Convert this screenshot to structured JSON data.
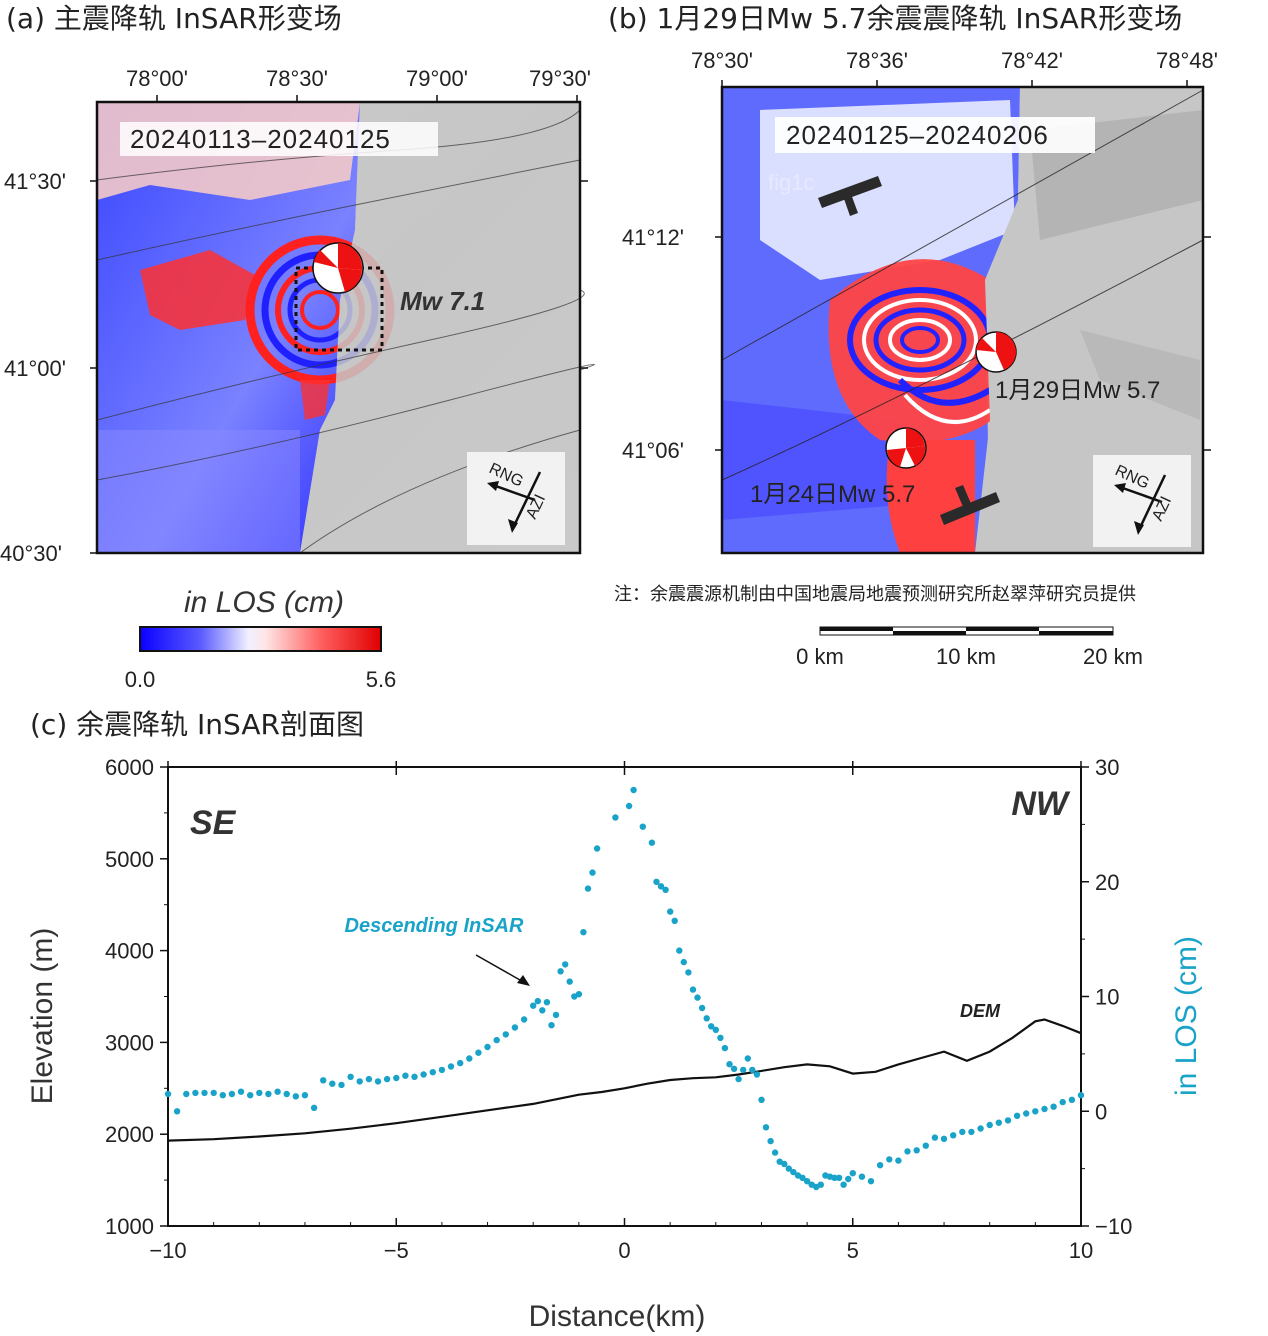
{
  "panels": {
    "a": {
      "title": "(a) 主震降轨 InSAR形变场",
      "date_range": "20240113–20240125",
      "event_label": "Mw 7.1",
      "lon_ticks": [
        "78°00'",
        "78°30'",
        "79°00'",
        "79°30'"
      ],
      "lat_ticks": [
        "41°30'",
        "41°00'",
        "40°30'"
      ],
      "rng_label": "RNG",
      "azi_label": "AZI"
    },
    "b": {
      "title": "(b) 1月29日Mw 5.7余震震降轨 InSAR形变场",
      "date_range": "20240125–20240206",
      "profile_label": "fig1c",
      "event1_label": "1月29日Mw 5.7",
      "event2_label": "1月24日Mw 5.7",
      "lon_ticks": [
        "78°30'",
        "78°36'",
        "78°42'",
        "78°48'"
      ],
      "lat_ticks": [
        "41°12'",
        "41°06'"
      ],
      "rng_label": "RNG",
      "azi_label": "AZI",
      "note": "注：余震震源机制由中国地震局地震预测研究所赵翠萍研究员提供",
      "scale_labels": [
        "0 km",
        "10 km",
        "20 km"
      ]
    },
    "colorbar": {
      "title": "in LOS (cm)",
      "min_label": "0.0",
      "max_label": "5.6",
      "colors": [
        "#1a1aff",
        "#ffffff",
        "#ff1a1a"
      ]
    }
  },
  "chart_data": {
    "type": "scatter",
    "title": "(c) 余震降轨 InSAR剖面图",
    "xlabel": "Distance(km)",
    "ylabel": "Elevation (m)",
    "y2label": "in LOS (cm)",
    "xlim": [
      -10,
      10
    ],
    "ylim": [
      1000,
      6000
    ],
    "y2lim": [
      -10,
      30
    ],
    "x_ticks": [
      "−10",
      "−5",
      "0",
      "5",
      "10"
    ],
    "y_ticks": [
      "1000",
      "2000",
      "3000",
      "4000",
      "5000",
      "6000"
    ],
    "y2_ticks": [
      "−10",
      "0",
      "10",
      "20",
      "30"
    ],
    "corner_left": "SE",
    "corner_right": "NW",
    "annotation": "Descending InSAR",
    "dem_label": "DEM",
    "insar_color": "#1aa3c8",
    "series": [
      {
        "name": "DEM",
        "axis": "left",
        "x": [
          -10,
          -9,
          -8,
          -7,
          -6,
          -5,
          -4,
          -3,
          -2,
          -1.5,
          -1,
          -0.5,
          0,
          0.5,
          1,
          1.5,
          2,
          2.5,
          3,
          3.5,
          4,
          4.5,
          5,
          5.5,
          6,
          6.5,
          7,
          7.5,
          8,
          8.5,
          9,
          9.2,
          9.6,
          10
        ],
        "values": [
          1930,
          1945,
          1975,
          2010,
          2060,
          2120,
          2190,
          2260,
          2330,
          2380,
          2430,
          2460,
          2500,
          2550,
          2590,
          2610,
          2620,
          2650,
          2690,
          2730,
          2760,
          2740,
          2660,
          2680,
          2760,
          2830,
          2900,
          2800,
          2900,
          3050,
          3230,
          3250,
          3180,
          3100
        ]
      },
      {
        "name": "Descending InSAR",
        "axis": "right",
        "x": [
          -10,
          -9.8,
          -9.6,
          -9.4,
          -9.2,
          -9,
          -8.8,
          -8.6,
          -8.4,
          -8.2,
          -8,
          -7.8,
          -7.6,
          -7.4,
          -7.2,
          -7,
          -6.8,
          -6.6,
          -6.4,
          -6.2,
          -6,
          -5.8,
          -5.6,
          -5.4,
          -5.2,
          -5,
          -4.8,
          -4.6,
          -4.4,
          -4.2,
          -4,
          -3.8,
          -3.6,
          -3.4,
          -3.2,
          -3,
          -2.8,
          -2.6,
          -2.4,
          -2.2,
          -2,
          -1.9,
          -1.8,
          -1.7,
          -1.6,
          -1.5,
          -1.4,
          -1.3,
          -1.2,
          -1.1,
          -1,
          -0.9,
          -0.8,
          -0.7,
          -0.6,
          -0.2,
          0.1,
          0.2,
          0.4,
          0.6,
          0.7,
          0.8,
          0.9,
          1.0,
          1.1,
          1.2,
          1.3,
          1.4,
          1.5,
          1.6,
          1.7,
          1.8,
          1.9,
          2.0,
          2.1,
          2.2,
          2.3,
          2.4,
          2.5,
          2.6,
          2.7,
          2.8,
          2.9,
          3.0,
          3.1,
          3.2,
          3.3,
          3.4,
          3.5,
          3.6,
          3.7,
          3.8,
          3.9,
          4.0,
          4.1,
          4.2,
          4.3,
          4.4,
          4.5,
          4.6,
          4.7,
          4.8,
          4.9,
          5.0,
          5.2,
          5.4,
          5.6,
          5.8,
          6.0,
          6.2,
          6.4,
          6.6,
          6.8,
          7.0,
          7.2,
          7.4,
          7.6,
          7.8,
          8.0,
          8.2,
          8.4,
          8.6,
          8.8,
          9.0,
          9.2,
          9.4,
          9.6,
          9.8,
          10
        ],
        "values": [
          1.5,
          0.0,
          1.5,
          1.6,
          1.6,
          1.6,
          1.4,
          1.5,
          1.7,
          1.4,
          1.6,
          1.5,
          1.7,
          1.5,
          1.3,
          1.4,
          0.3,
          2.7,
          2.4,
          2.3,
          3.0,
          2.6,
          2.8,
          2.6,
          2.8,
          2.9,
          3.1,
          3.0,
          3.2,
          3.4,
          3.6,
          3.9,
          4.2,
          4.6,
          5.1,
          5.6,
          6.2,
          6.7,
          7.3,
          8.0,
          9.2,
          9.6,
          8.8,
          9.5,
          7.5,
          8.4,
          12.2,
          12.8,
          11.3,
          10.0,
          10.2,
          15.6,
          19.4,
          20.8,
          22.9,
          25.6,
          26.6,
          28.0,
          24.8,
          23.4,
          20.0,
          19.6,
          19.3,
          17.4,
          16.6,
          14.0,
          13.0,
          12.1,
          10.6,
          9.9,
          9.0,
          8.1,
          7.4,
          7.1,
          6.4,
          5.5,
          4.1,
          3.7,
          2.8,
          3.6,
          4.6,
          3.6,
          3.2,
          1.0,
          -1.4,
          -2.6,
          -3.6,
          -4.4,
          -4.6,
          -5.0,
          -5.3,
          -5.6,
          -5.8,
          -6.1,
          -6.4,
          -6.6,
          -6.4,
          -5.6,
          -5.7,
          -5.8,
          -5.8,
          -6.4,
          -5.9,
          -5.4,
          -5.7,
          -6.1,
          -4.7,
          -4.2,
          -4.3,
          -3.5,
          -3.4,
          -3.0,
          -2.3,
          -2.4,
          -2.1,
          -1.8,
          -1.8,
          -1.5,
          -1.2,
          -1.0,
          -0.8,
          -0.4,
          -0.2,
          0.0,
          0.2,
          0.4,
          0.8,
          1.0,
          1.4
        ]
      }
    ]
  }
}
